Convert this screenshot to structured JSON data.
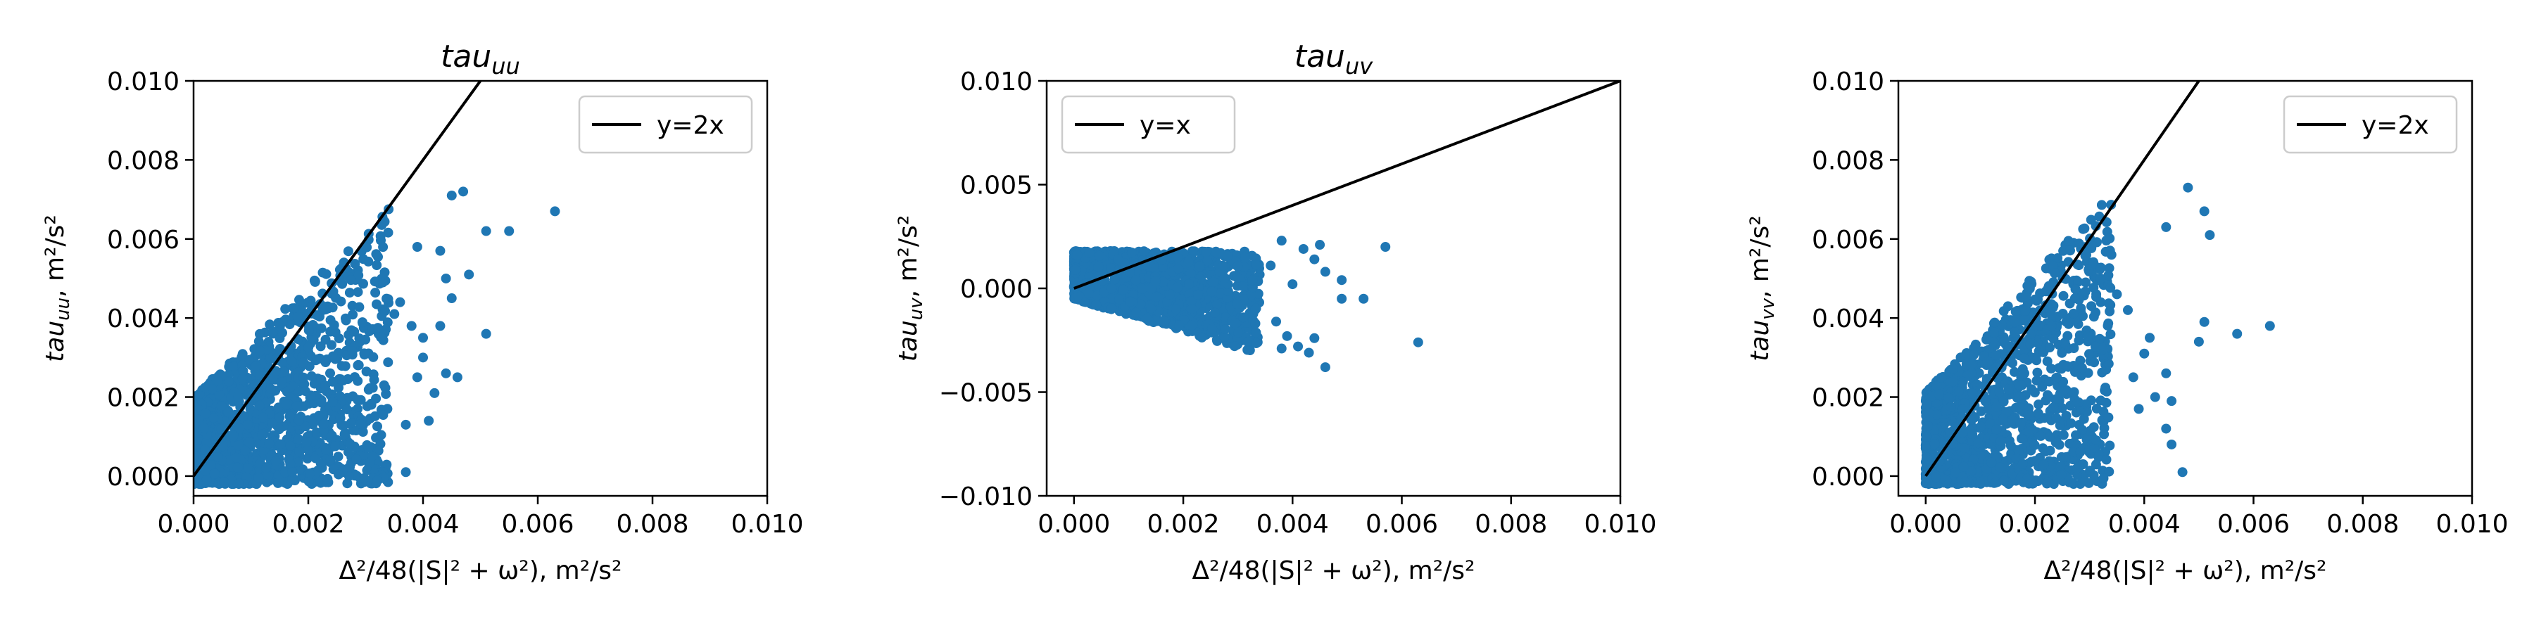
{
  "colors": {
    "points": "#1f77b4",
    "line": "#000000",
    "axes": "#000000",
    "legend_border": "#cccccc"
  },
  "chart_data": [
    {
      "type": "scatter",
      "title": "tau_uu",
      "title_base": "tau",
      "title_sub": "uu",
      "xlabel": "Δ²/48(|S|² + ω²), m²/s²",
      "ylabel": "tau_uu, m²/s²",
      "ylabel_base": "tau",
      "ylabel_sub": "uu",
      "xlim": [
        0.0,
        0.01
      ],
      "ylim": [
        -0.0005,
        0.01
      ],
      "xticks": [
        0.0,
        0.002,
        0.004,
        0.006,
        0.008,
        0.01
      ],
      "xtick_labels": [
        "0.000",
        "0.002",
        "0.004",
        "0.006",
        "0.008",
        "0.010"
      ],
      "yticks": [
        0.0,
        0.002,
        0.004,
        0.006,
        0.008,
        0.01
      ],
      "ytick_labels": [
        "0.000",
        "0.002",
        "0.004",
        "0.006",
        "0.008",
        "0.010"
      ],
      "reference_line": {
        "label": "y=2x",
        "slope": 2
      },
      "legend_position": "top-right",
      "point_cloud": {
        "x_min": 0.0,
        "x_max": 0.0034,
        "y_low": -0.0002,
        "y_high_slope": 1.4,
        "y_high_base": 0.002,
        "count": 1400
      },
      "outliers": [
        [
          0.0047,
          0.0072
        ],
        [
          0.0045,
          0.0071
        ],
        [
          0.0051,
          0.0062
        ],
        [
          0.0055,
          0.0062
        ],
        [
          0.0063,
          0.0067
        ],
        [
          0.0039,
          0.0058
        ],
        [
          0.0043,
          0.0057
        ],
        [
          0.0048,
          0.0051
        ],
        [
          0.0045,
          0.0045
        ],
        [
          0.0051,
          0.0036
        ],
        [
          0.0044,
          0.0026
        ],
        [
          0.0046,
          0.0025
        ],
        [
          0.004,
          0.003
        ],
        [
          0.0039,
          0.0025
        ],
        [
          0.0041,
          0.0014
        ],
        [
          0.0037,
          0.0013
        ],
        [
          0.0042,
          0.0021
        ],
        [
          0.0038,
          0.0038
        ],
        [
          0.0036,
          0.0044
        ],
        [
          0.004,
          0.0035
        ],
        [
          0.0033,
          0.0049
        ],
        [
          0.0035,
          0.0041
        ],
        [
          0.0043,
          0.0038
        ],
        [
          0.0044,
          0.005
        ],
        [
          0.0037,
          0.0001
        ]
      ]
    },
    {
      "type": "scatter",
      "title": "tau_uv",
      "title_base": "tau",
      "title_sub": "uv",
      "xlabel": "Δ²/48(|S|² + ω²), m²/s²",
      "ylabel": "tau_uv, m²/s²",
      "ylabel_base": "tau",
      "ylabel_sub": "uv",
      "xlim": [
        -0.0005,
        0.01
      ],
      "ylim": [
        -0.01,
        0.01
      ],
      "xticks": [
        0.0,
        0.002,
        0.004,
        0.006,
        0.008,
        0.01
      ],
      "xtick_labels": [
        "0.000",
        "0.002",
        "0.004",
        "0.006",
        "0.008",
        "0.010"
      ],
      "yticks": [
        -0.01,
        -0.005,
        0.0,
        0.005,
        0.01
      ],
      "ytick_labels": [
        "−0.010",
        "−0.005",
        "0.000",
        "0.005",
        "0.010"
      ],
      "reference_line": {
        "label": "y=x",
        "slope": 1
      },
      "legend_position": "top-left",
      "point_cloud": {
        "x_min": 0.0,
        "x_max": 0.0034,
        "y_low_slope": -0.8,
        "y_low_base": -0.0005,
        "y_high": 0.0018,
        "count": 1400
      },
      "outliers": [
        [
          0.0038,
          0.0023
        ],
        [
          0.0042,
          0.0019
        ],
        [
          0.0045,
          0.0021
        ],
        [
          0.0057,
          0.002
        ],
        [
          0.0063,
          -0.0026
        ],
        [
          0.0046,
          -0.0038
        ],
        [
          0.0043,
          -0.0031
        ],
        [
          0.0049,
          0.0004
        ],
        [
          0.0053,
          -0.0005
        ],
        [
          0.0049,
          -0.0005
        ],
        [
          0.0046,
          0.0008
        ],
        [
          0.0044,
          0.0014
        ],
        [
          0.0039,
          -0.0023
        ],
        [
          0.0041,
          -0.0028
        ],
        [
          0.0038,
          -0.0029
        ],
        [
          0.0044,
          -0.0024
        ],
        [
          0.0036,
          0.0011
        ],
        [
          0.004,
          0.0002
        ],
        [
          0.0037,
          -0.0016
        ]
      ]
    },
    {
      "type": "scatter",
      "title": "",
      "xlabel": "Δ²/48(|S|² + ω²), m²/s²",
      "ylabel": "tau_vv, m²/s²",
      "ylabel_base": "tau",
      "ylabel_sub": "vv",
      "xlim": [
        -0.0005,
        0.01
      ],
      "ylim": [
        -0.0005,
        0.01
      ],
      "xticks": [
        0.0,
        0.002,
        0.004,
        0.006,
        0.008,
        0.01
      ],
      "xtick_labels": [
        "0.000",
        "0.002",
        "0.004",
        "0.006",
        "0.008",
        "0.010"
      ],
      "yticks": [
        0.0,
        0.002,
        0.004,
        0.006,
        0.008,
        0.01
      ],
      "ytick_labels": [
        "0.000",
        "0.002",
        "0.004",
        "0.006",
        "0.008",
        "0.010"
      ],
      "reference_line": {
        "label": "y=2x",
        "slope": 2
      },
      "legend_position": "top-right",
      "point_cloud": {
        "x_min": 0.0,
        "x_max": 0.0034,
        "y_low": -0.0002,
        "y_high_slope": 1.5,
        "y_high_base": 0.0021,
        "count": 1400
      },
      "outliers": [
        [
          0.0048,
          0.0073
        ],
        [
          0.0051,
          0.0067
        ],
        [
          0.0052,
          0.0061
        ],
        [
          0.0044,
          0.0063
        ],
        [
          0.0063,
          0.0038
        ],
        [
          0.0057,
          0.0036
        ],
        [
          0.0051,
          0.0039
        ],
        [
          0.005,
          0.0034
        ],
        [
          0.0044,
          0.0026
        ],
        [
          0.0045,
          0.0019
        ],
        [
          0.0045,
          0.0008
        ],
        [
          0.0044,
          0.0012
        ],
        [
          0.004,
          0.0031
        ],
        [
          0.0041,
          0.0035
        ],
        [
          0.0042,
          0.002
        ],
        [
          0.0038,
          0.0025
        ],
        [
          0.0039,
          0.0017
        ],
        [
          0.0047,
          0.0001
        ],
        [
          0.0037,
          0.0042
        ],
        [
          0.0035,
          0.0046
        ],
        [
          0.0032,
          0.005
        ],
        [
          0.0034,
          0.0056
        ]
      ]
    }
  ]
}
